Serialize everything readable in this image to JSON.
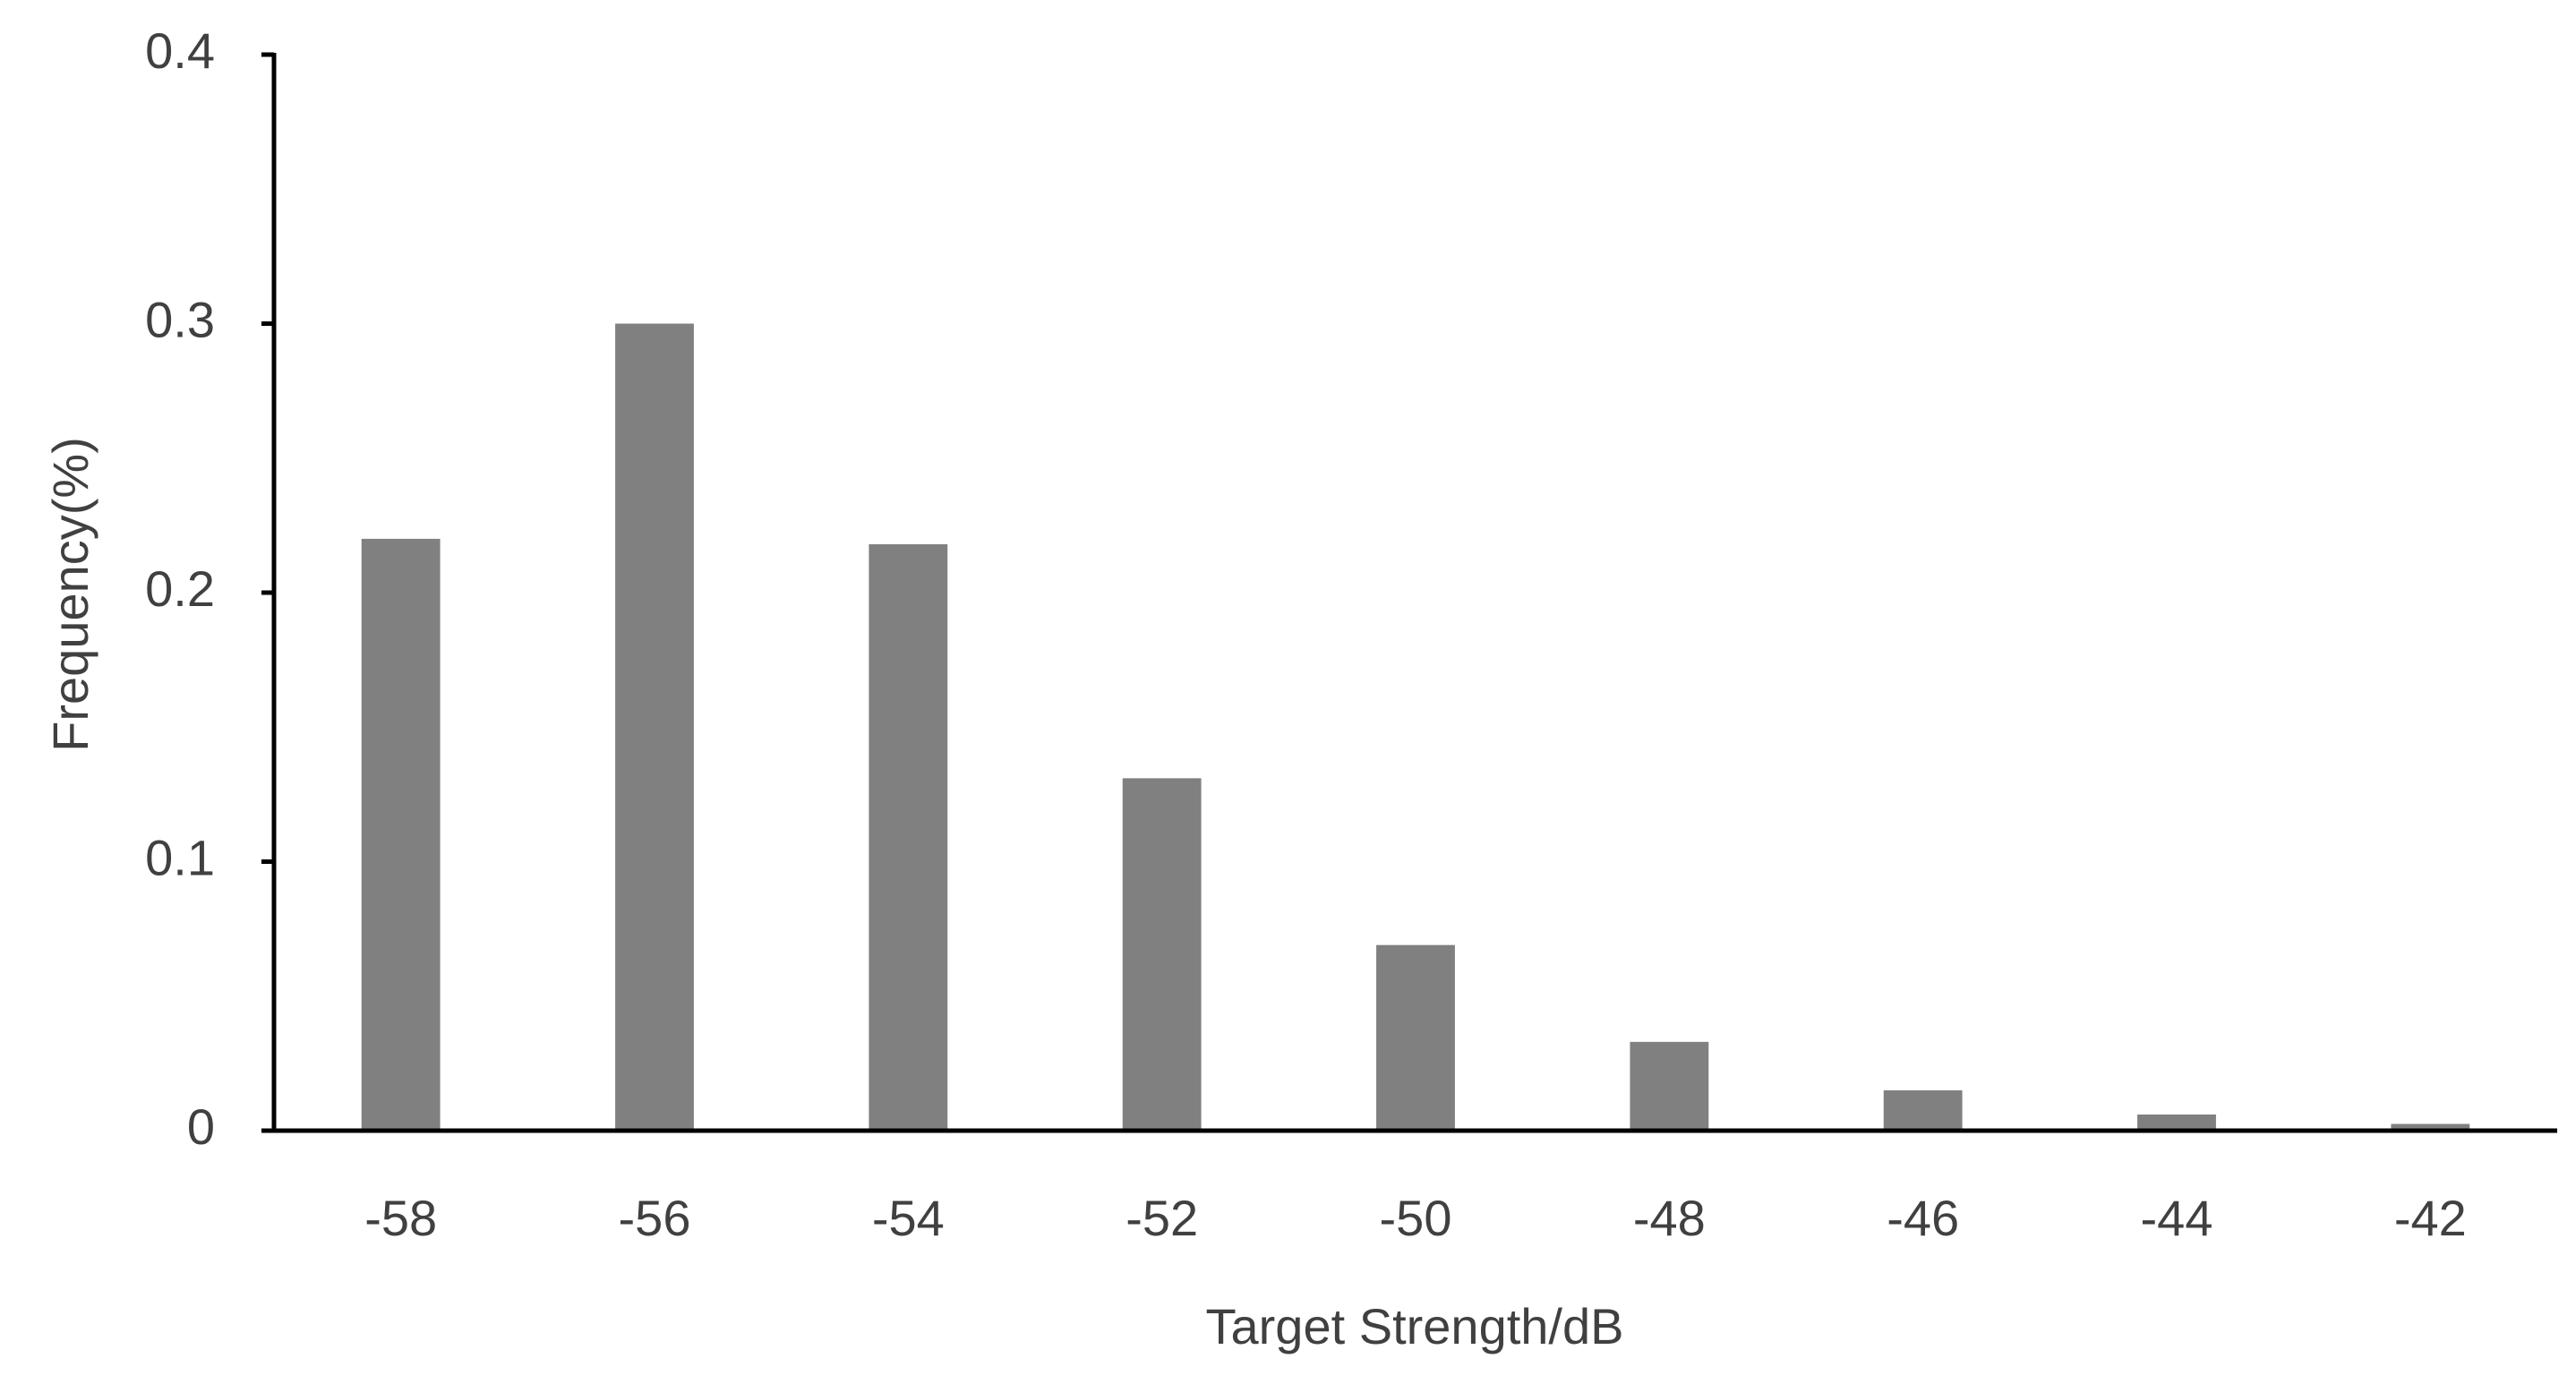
{
  "chart_data": {
    "type": "bar",
    "x_label": "Target Strength/dB",
    "y_label": "Frequency(%)",
    "categories": [
      "-58",
      "-56",
      "-54",
      "-52",
      "-50",
      "-48",
      "-46",
      "-44",
      "-42"
    ],
    "values": [
      0.22,
      0.3,
      0.218,
      0.131,
      0.069,
      0.033,
      0.015,
      0.006,
      0.0025
    ],
    "color": "#808080",
    "ylim": [
      0,
      0.4
    ],
    "yticks": [
      0,
      0.1,
      0.2,
      0.3,
      0.4
    ],
    "grid": false
  }
}
